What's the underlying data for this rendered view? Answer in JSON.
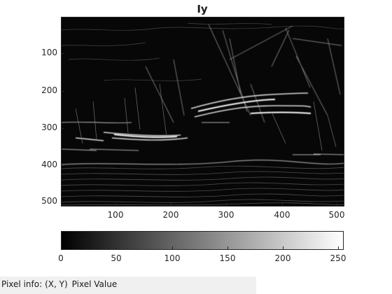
{
  "figure": {
    "title": "Iy",
    "image_description_name": "vertical-gradient-image"
  },
  "axes": {
    "y_ticks": [
      "100",
      "200",
      "300",
      "400",
      "500"
    ],
    "x_ticks": [
      "100",
      "200",
      "300",
      "400",
      "500"
    ]
  },
  "colorbar": {
    "ticks": [
      "0",
      "50",
      "100",
      "150",
      "200",
      "250"
    ],
    "colors": {
      "low": "#000000",
      "high": "#ffffff"
    }
  },
  "statusbar": {
    "label": "Pixel info:",
    "coords": "(X, Y)",
    "value_label": "Pixel Value"
  }
}
